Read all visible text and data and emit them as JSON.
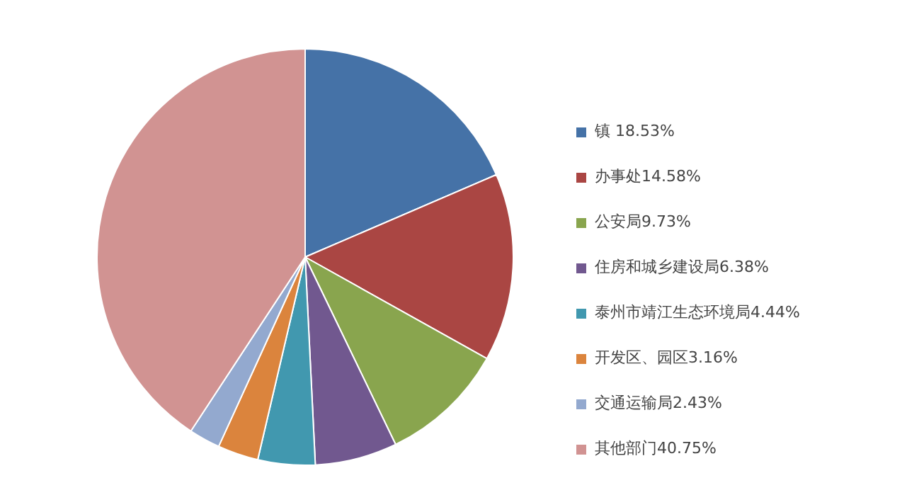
{
  "chart_data": {
    "type": "pie",
    "legend": "right",
    "categories": [
      "镇 18.53%",
      "办事处14.58%",
      "公安局9.73%",
      "住房和城乡建设局6.38%",
      "泰州市靖江生态环境局4.44%",
      "开发区、园区3.16%",
      "交通运输局2.43%",
      "其他部门40.75%"
    ],
    "values": [
      18.53,
      14.58,
      9.73,
      6.38,
      4.44,
      3.16,
      2.43,
      40.75
    ],
    "colors": [
      "#4572a7",
      "#aa4643",
      "#89a54e",
      "#71588f",
      "#4198af",
      "#db843d",
      "#93a9cf",
      "#d19392"
    ]
  }
}
